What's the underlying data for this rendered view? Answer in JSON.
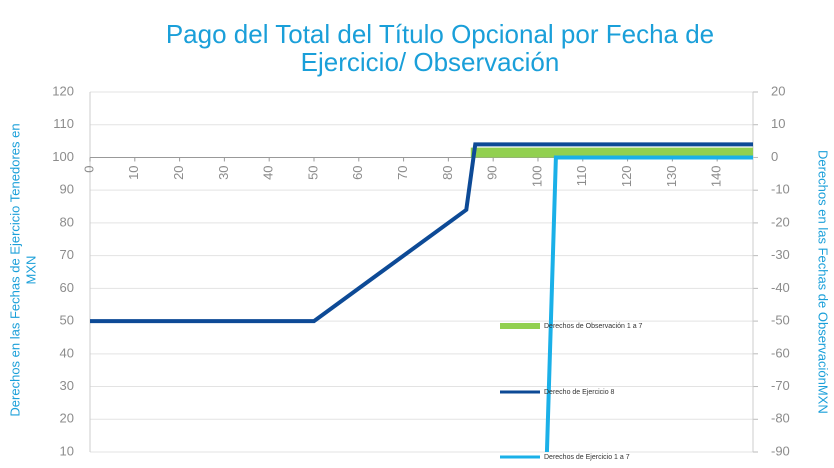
{
  "chart_data": {
    "type": "line",
    "title": [
      "Pago del Total del Título Opcional por Fecha de",
      "Ejercicio/ Observación"
    ],
    "ylabel": [
      "Derechos en las Fechas de Ejercicio Tenedores en",
      "MXN"
    ],
    "y2label": "Derechos en las Fechas de ObservaciónMXN",
    "xlim": [
      0,
      148
    ],
    "xticks": [
      0,
      10,
      20,
      30,
      40,
      50,
      60,
      70,
      80,
      90,
      100,
      110,
      120,
      130,
      140
    ],
    "ylim": [
      10,
      120
    ],
    "yticks": [
      10,
      20,
      30,
      40,
      50,
      60,
      70,
      80,
      90,
      100,
      110,
      120
    ],
    "y2lim": [
      -90,
      20
    ],
    "y2ticks": [
      -90,
      -80,
      -70,
      -60,
      -50,
      -40,
      -30,
      -20,
      -10,
      0,
      10,
      20
    ],
    "grid": true,
    "series": [
      {
        "name": "Derechos de Observación 1 a 7",
        "color": "#92d050",
        "axis": "y2",
        "kind": "area",
        "x": [
          85,
          148
        ],
        "values": [
          3,
          3
        ]
      },
      {
        "name": "Derecho de Ejercicio 8",
        "color": "#0d4a96",
        "axis": "y",
        "kind": "line",
        "x": [
          0,
          50,
          84,
          86,
          148
        ],
        "values": [
          50,
          50,
          84,
          104,
          104
        ]
      },
      {
        "name": "Derechos de Ejercicio 1 a 7",
        "color": "#1ab0e8",
        "axis": "y2",
        "kind": "line",
        "x": [
          102,
          104,
          148
        ],
        "values": [
          -90,
          0,
          0
        ]
      }
    ]
  }
}
